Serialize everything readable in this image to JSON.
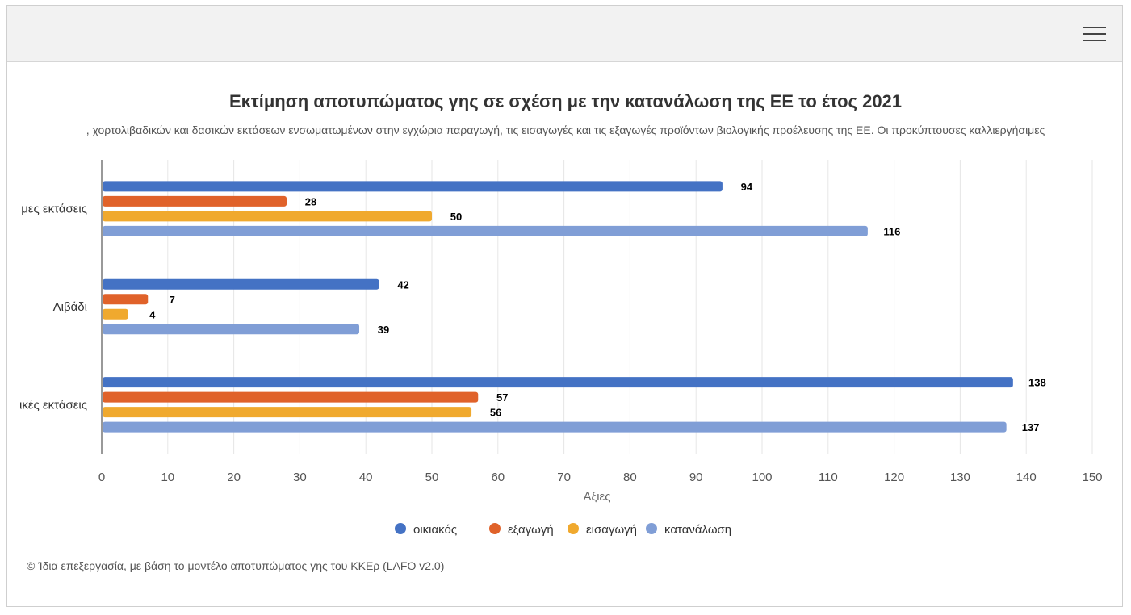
{
  "chart_data": {
    "type": "bar",
    "orientation": "horizontal",
    "title": "Εκτίμηση αποτυπώματος γης σε σχέση με την κατανάλωση της ΕΕ το έτος 2021",
    "subtitle": ", χορτολιβαδικών και δασικών εκτάσεων ενσωματωμένων στην εγχώρια παραγωγή, τις εισαγωγές και τις εξαγωγές προϊόντων βιολογικής προέλευσης της ΕΕ. Οι προκύπτουσες καλλιεργήσιμες",
    "categories": [
      "μες εκτάσεις",
      "Λιβάδι",
      "ικές εκτάσεις"
    ],
    "series": [
      {
        "name": "οικιακός",
        "color": "#4472c4",
        "values": [
          94,
          42,
          138
        ]
      },
      {
        "name": "εξαγωγή",
        "color": "#e0622a",
        "values": [
          28,
          7,
          57
        ]
      },
      {
        "name": "εισαγωγή",
        "color": "#f0a92e",
        "values": [
          50,
          4,
          56
        ]
      },
      {
        "name": "κατανάλωση",
        "color": "#809ed6",
        "values": [
          116,
          39,
          137
        ]
      }
    ],
    "xlabel": "Αξιες",
    "xlim": [
      0,
      150
    ],
    "xticks": [
      0,
      10,
      20,
      30,
      40,
      50,
      60,
      70,
      80,
      90,
      100,
      110,
      120,
      130,
      140,
      150
    ],
    "grid": true,
    "legend_position": "bottom"
  },
  "credit": "© Ίδια επεξεργασία, με βάση το μοντέλο αποτυπώματος γης του ΚΚΕρ (LAFO v2.0)"
}
